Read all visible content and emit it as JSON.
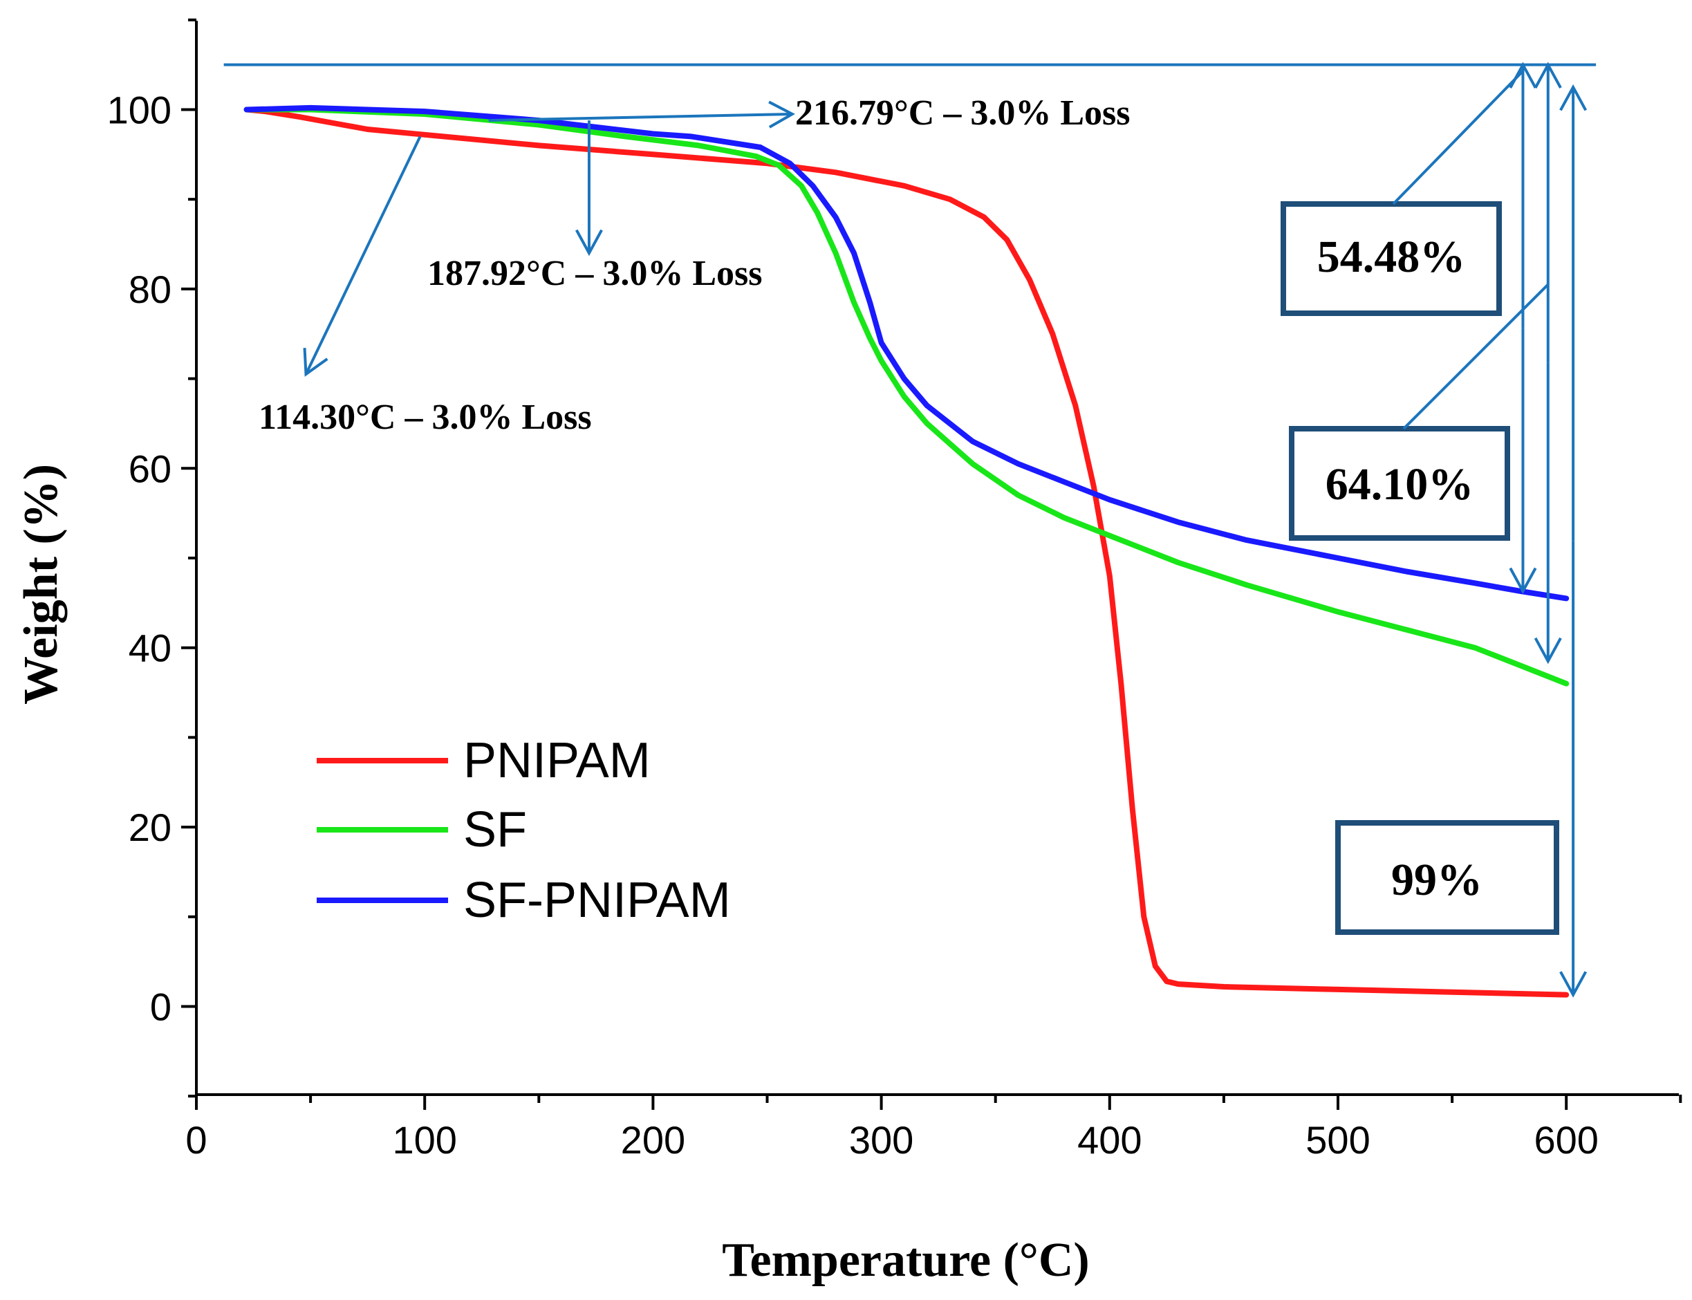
{
  "chart_data": {
    "type": "line",
    "xlabel": "Temperature (°C)",
    "ylabel": "Weight (%)",
    "xlim": [
      0,
      650
    ],
    "ylim": [
      -10,
      110
    ],
    "xticks": [
      "0",
      "100",
      "200",
      "300",
      "400",
      "500",
      "600"
    ],
    "yticks": [
      "0",
      "20",
      "40",
      "60",
      "80",
      "100"
    ],
    "legend": {
      "position": "lower-left",
      "entries": [
        "PNIPAM",
        "SF",
        "SF-PNIPAM"
      ]
    },
    "series": [
      {
        "name": "PNIPAM",
        "color": "#ff1a1a",
        "x": [
          22,
          30,
          45,
          60,
          75,
          100,
          150,
          200,
          250,
          280,
          310,
          330,
          345,
          355,
          365,
          375,
          385,
          393,
          400,
          405,
          410,
          415,
          420,
          425,
          430,
          450,
          500,
          550,
          600
        ],
        "y": [
          100,
          99.8,
          99.2,
          98.5,
          97.8,
          97.2,
          96,
          95,
          94,
          93,
          91.5,
          90,
          88,
          85.5,
          81,
          75,
          67,
          58,
          48,
          36,
          22,
          10,
          4.5,
          2.8,
          2.5,
          2.2,
          1.9,
          1.6,
          1.3
        ]
      },
      {
        "name": "SF",
        "color": "#19e619",
        "x": [
          22,
          50,
          100,
          150,
          187.92,
          220,
          245,
          255,
          265,
          272,
          280,
          288,
          295,
          300,
          310,
          320,
          340,
          360,
          380,
          400,
          430,
          460,
          500,
          530,
          560,
          580,
          600
        ],
        "y": [
          100,
          100,
          99.5,
          98.3,
          97,
          96,
          94.8,
          93.8,
          91.5,
          88.5,
          84,
          78.5,
          74.5,
          72,
          68,
          65,
          60.5,
          57,
          54.5,
          52.5,
          49.5,
          47,
          44,
          42,
          40,
          38,
          36
        ]
      },
      {
        "name": "SF-PNIPAM",
        "color": "#1a1aff",
        "x": [
          22,
          50,
          100,
          150,
          200,
          216.79,
          247,
          260,
          270,
          280,
          288,
          295,
          300,
          310,
          320,
          340,
          360,
          380,
          400,
          430,
          460,
          500,
          530,
          560,
          580,
          600
        ],
        "y": [
          100,
          100.2,
          99.8,
          98.8,
          97.3,
          97,
          95.8,
          94,
          91.5,
          88,
          84,
          78.5,
          74,
          70,
          67,
          63,
          60.5,
          58.5,
          56.5,
          54,
          52,
          50,
          48.5,
          47.2,
          46.3,
          45.5
        ]
      }
    ],
    "annotations": [
      {
        "text": "216.79°C – 3.0% Loss",
        "x": 216.79,
        "y": 97
      },
      {
        "text": "187.92°C – 3.0% Loss",
        "x": 187.92,
        "y": 97
      },
      {
        "text": "114.30°C – 3.0% Loss",
        "x": 114.3,
        "y": 97
      }
    ],
    "boxes": [
      {
        "text": "54.48%",
        "series": "SF-PNIPAM"
      },
      {
        "text": "64.10%",
        "series": "SF"
      },
      {
        "text": "99%",
        "series": "PNIPAM"
      }
    ],
    "reference_line": {
      "y": 105
    },
    "accent_color": "#1b75bc",
    "box_color": "#1f4e79"
  }
}
